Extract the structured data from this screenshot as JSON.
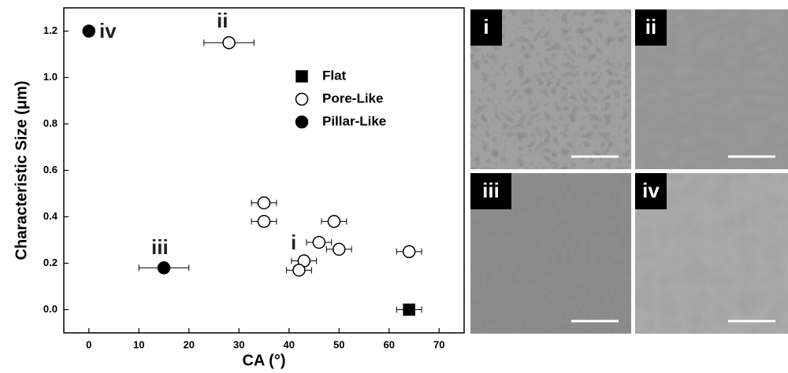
{
  "chart_data": {
    "type": "scatter",
    "x_label": "CA (°)",
    "y_label": "Characteristic Size (μm)",
    "xlim": [
      -5,
      75
    ],
    "ylim": [
      -0.1,
      1.3
    ],
    "xticks": [
      0,
      10,
      20,
      30,
      40,
      50,
      60,
      70
    ],
    "yticks": [
      {
        "value": 0,
        "label": "0.0"
      },
      {
        "value": 0.2,
        "label": "0.2"
      },
      {
        "value": 0.4,
        "label": "0.4"
      },
      {
        "value": 0.6,
        "label": "0.6"
      },
      {
        "value": 0.8,
        "label": "0.8"
      },
      {
        "value": 1.0,
        "label": "1.0"
      },
      {
        "value": 1.2,
        "label": "1.2"
      }
    ],
    "legend": "upper right",
    "series": [
      {
        "name": "Flat",
        "marker": "square",
        "color": "#000000",
        "x": [
          64
        ],
        "values": [
          0.0
        ],
        "xerr": [
          2.5
        ]
      },
      {
        "name": "Pore-Like",
        "marker": "open-circle",
        "color": "#000000",
        "x": [
          28,
          35,
          35,
          49,
          46,
          50,
          43,
          42,
          64
        ],
        "values": [
          1.15,
          0.46,
          0.38,
          0.38,
          0.29,
          0.26,
          0.21,
          0.17,
          0.25
        ],
        "xerr": [
          5,
          2.5,
          2.5,
          2.5,
          2.5,
          2.5,
          2.5,
          2.5,
          2.5
        ]
      },
      {
        "name": "Pillar-Like",
        "marker": "circle",
        "color": "#000000",
        "x": [
          0,
          15
        ],
        "values": [
          1.2,
          0.18
        ],
        "xerr": [
          null,
          5
        ]
      }
    ],
    "annotations": [
      "iv",
      "ii",
      "iii",
      "i"
    ]
  },
  "panels": [
    {
      "label": "i"
    },
    {
      "label": "ii"
    },
    {
      "label": "iii"
    },
    {
      "label": "iv"
    }
  ]
}
